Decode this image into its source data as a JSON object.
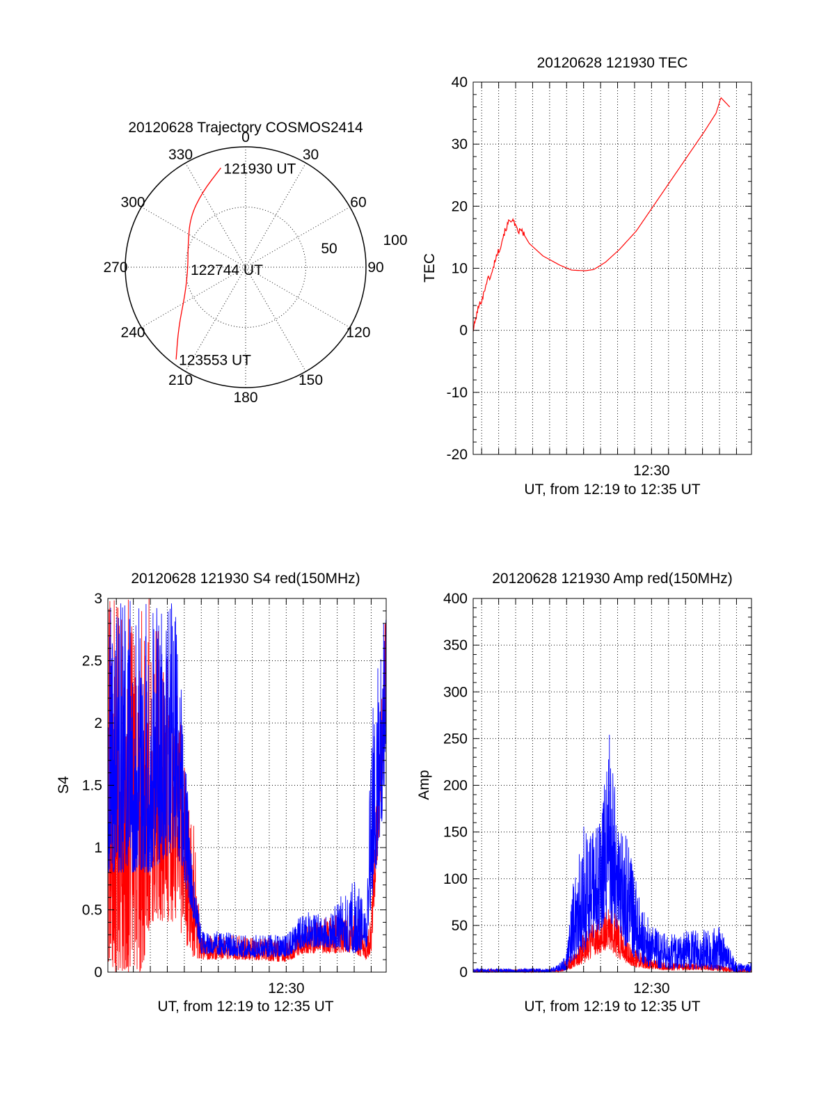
{
  "chart_data": [
    {
      "type": "polar",
      "title": "20120628 Trajectory COSMOS2414",
      "angle_labels": [
        "0",
        "30",
        "60",
        "90",
        "120",
        "150",
        "180",
        "210",
        "240",
        "270",
        "300",
        "330"
      ],
      "radius_labels": [
        "50",
        "100"
      ],
      "radial_range": [
        0,
        100
      ],
      "angle_orientation": "clockwise, 0 at top",
      "grid": true,
      "color": "#ff0000",
      "series": [
        {
          "points": [
            {
              "az": 346,
              "r": 85
            },
            {
              "az": 330,
              "r": 72
            },
            {
              "az": 312,
              "r": 62
            },
            {
              "az": 290,
              "r": 51
            },
            {
              "az": 268,
              "r": 48
            },
            {
              "az": 246,
              "r": 55
            },
            {
              "az": 228,
              "r": 75
            },
            {
              "az": 217,
              "r": 96
            }
          ]
        }
      ],
      "annotations": [
        {
          "text": "121930 UT",
          "az": 346,
          "r": 85
        },
        {
          "text": "122744 UT",
          "az": 268,
          "r": 48
        },
        {
          "text": "123553 UT",
          "az": 217,
          "r": 96
        }
      ]
    },
    {
      "type": "line",
      "title": "20120628 121930 TEC",
      "xlabel": "UT, from 12:19 to 12:35 UT",
      "ylabel": "TEC",
      "xlim": [
        "12:19:30",
        "12:35:53"
      ],
      "ylim": [
        -20,
        40
      ],
      "yticks": [
        -20,
        -10,
        0,
        10,
        20,
        30,
        40
      ],
      "xtick_labels": [
        {
          "label": "12:30",
          "t": "12:30:00"
        }
      ],
      "grid": true,
      "series": [
        {
          "color": "#ff0000",
          "points": [
            [
              "12:19:30",
              0
            ],
            [
              "12:19:47",
              3.5
            ],
            [
              "12:20:05",
              5.5
            ],
            [
              "12:20:18",
              8
            ],
            [
              "12:20:36",
              9
            ],
            [
              "12:20:48",
              11.5
            ],
            [
              "12:21:06",
              13.5
            ],
            [
              "12:21:18",
              15.5
            ],
            [
              "12:21:36",
              17.5
            ],
            [
              "12:21:47",
              18
            ],
            [
              "12:22:06",
              16
            ],
            [
              "12:22:22",
              16
            ],
            [
              "12:22:48",
              14
            ],
            [
              "12:23:36",
              12
            ],
            [
              "12:24:36",
              10.5
            ],
            [
              "12:25:18",
              9.7
            ],
            [
              "12:26:06",
              9.6
            ],
            [
              "12:26:36",
              9.8
            ],
            [
              "12:27:18",
              11
            ],
            [
              "12:28:06",
              13
            ],
            [
              "12:29:06",
              16
            ],
            [
              "12:30:06",
              20
            ],
            [
              "12:31:06",
              24
            ],
            [
              "12:32:06",
              28
            ],
            [
              "12:33:06",
              32
            ],
            [
              "12:33:48",
              35
            ],
            [
              "12:34:05",
              37.5
            ],
            [
              "12:34:36",
              36
            ]
          ]
        }
      ]
    },
    {
      "type": "line",
      "title": "20120628 121930 S4 red(150MHz)",
      "xlabel": "UT, from 12:19 to 12:35 UT",
      "ylabel": "S4",
      "xlim": [
        "12:19:30",
        "12:35:53"
      ],
      "ylim": [
        0,
        3
      ],
      "yticks": [
        0,
        0.5,
        1,
        1.5,
        2,
        2.5,
        3
      ],
      "xtick_labels": [
        {
          "label": "12:30",
          "t": "12:30:00"
        }
      ],
      "grid": true,
      "series": [
        {
          "color": "#ff0000",
          "envelope": [
            [
              "12:19:30",
              0,
              3
            ],
            [
              "12:20:30",
              0,
              3
            ],
            [
              "12:21:30",
              0,
              3
            ],
            [
              "12:22:00",
              0.4,
              3
            ],
            [
              "12:23:30",
              0.4,
              2.3
            ],
            [
              "12:24:30",
              0.12,
              1.3
            ],
            [
              "12:25:00",
              0.1,
              0.3
            ],
            [
              "12:27:30",
              0.1,
              0.3
            ],
            [
              "12:30:00",
              0.08,
              0.25
            ],
            [
              "12:31:00",
              0.15,
              0.35
            ],
            [
              "12:32:30",
              0.15,
              0.45
            ],
            [
              "12:34:00",
              0.15,
              0.5
            ],
            [
              "12:34:45",
              0.1,
              0.3
            ],
            [
              "12:35:00",
              0.15,
              0.5
            ],
            [
              "12:35:53",
              2,
              3
            ]
          ]
        },
        {
          "color": "#0000ff",
          "envelope": [
            [
              "12:19:30",
              0.8,
              3
            ],
            [
              "12:20:30",
              0.8,
              3
            ],
            [
              "12:21:30",
              0.8,
              3
            ],
            [
              "12:22:00",
              0.8,
              3
            ],
            [
              "12:23:30",
              1.0,
              3
            ],
            [
              "12:24:30",
              0.45,
              0.8
            ],
            [
              "12:25:00",
              0.15,
              0.35
            ],
            [
              "12:27:30",
              0.12,
              0.3
            ],
            [
              "12:30:00",
              0.12,
              0.3
            ],
            [
              "12:31:00",
              0.2,
              0.5
            ],
            [
              "12:32:30",
              0.2,
              0.45
            ],
            [
              "12:34:00",
              0.15,
              0.8
            ],
            [
              "12:34:45",
              0.2,
              0.5
            ],
            [
              "12:35:00",
              0.5,
              2
            ],
            [
              "12:35:53",
              1.5,
              3
            ]
          ]
        }
      ]
    },
    {
      "type": "line",
      "title": "20120628 121930 Amp red(150MHz)",
      "xlabel": "UT, from 12:19 to 12:35 UT",
      "ylabel": "Amp",
      "xlim": [
        "12:19:30",
        "12:35:53"
      ],
      "ylim": [
        0,
        400
      ],
      "yticks": [
        0,
        50,
        100,
        150,
        200,
        250,
        300,
        350,
        400
      ],
      "xtick_labels": [
        {
          "label": "12:30",
          "t": "12:30:00"
        }
      ],
      "grid": true,
      "series": [
        {
          "color": "#ff0000",
          "envelope": [
            [
              "12:19:30",
              0,
              3
            ],
            [
              "12:24:30",
              0,
              3
            ],
            [
              "12:25:00",
              2,
              15
            ],
            [
              "12:25:30",
              5,
              20
            ],
            [
              "12:26:00",
              10,
              45
            ],
            [
              "12:26:30",
              15,
              55
            ],
            [
              "12:27:00",
              20,
              60
            ],
            [
              "12:27:30",
              25,
              75
            ],
            [
              "12:28:00",
              15,
              60
            ],
            [
              "12:28:30",
              10,
              40
            ],
            [
              "12:29:00",
              5,
              25
            ],
            [
              "12:30:00",
              3,
              15
            ],
            [
              "12:31:00",
              2,
              10
            ],
            [
              "12:32:00",
              2,
              10
            ],
            [
              "12:33:00",
              2,
              10
            ],
            [
              "12:34:00",
              1,
              8
            ],
            [
              "12:35:00",
              0,
              4
            ]
          ]
        },
        {
          "color": "#0000ff",
          "envelope": [
            [
              "12:19:30",
              0,
              4
            ],
            [
              "12:24:00",
              0,
              4
            ],
            [
              "12:24:30",
              1,
              8
            ],
            [
              "12:25:00",
              2,
              20
            ],
            [
              "12:25:20",
              10,
              90
            ],
            [
              "12:26:00",
              20,
              160
            ],
            [
              "12:26:30",
              35,
              150
            ],
            [
              "12:27:00",
              45,
              170
            ],
            [
              "12:27:30",
              55,
              260
            ],
            [
              "12:28:00",
              40,
              170
            ],
            [
              "12:28:30",
              25,
              150
            ],
            [
              "12:29:00",
              15,
              110
            ],
            [
              "12:29:30",
              8,
              70
            ],
            [
              "12:30:00",
              5,
              50
            ],
            [
              "12:31:00",
              3,
              40
            ],
            [
              "12:32:00",
              3,
              45
            ],
            [
              "12:33:00",
              3,
              45
            ],
            [
              "12:34:00",
              2,
              50
            ],
            [
              "12:34:30",
              2,
              30
            ],
            [
              "12:35:00",
              0,
              10
            ]
          ]
        }
      ]
    }
  ]
}
